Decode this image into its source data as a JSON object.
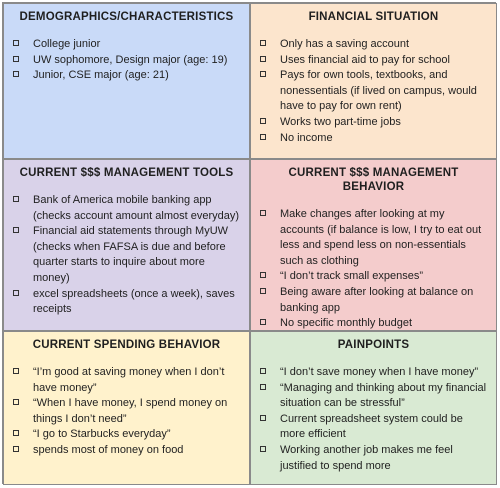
{
  "colors": {
    "demographics_bg": "#c9daf8",
    "financial_bg": "#fce5cd",
    "tools_bg": "#d9d2e9",
    "behavior_bg": "#f4cccc",
    "spending_bg": "#fff2cc",
    "painpoints_bg": "#d9ead3",
    "border": "#8a8a8a"
  },
  "icons": {
    "bullet": "checkbox-icon"
  },
  "cells": {
    "demographics": {
      "title": "DEMOGRAPHICS/CHARACTERISTICS",
      "items": [
        "College junior",
        "UW sophomore, Design major (age: 19)",
        "Junior, CSE major (age: 21)"
      ]
    },
    "financial": {
      "title": "FINANCIAL SITUATION",
      "items": [
        "Only has a saving account",
        "Uses financial aid to pay for school",
        "Pays for own tools, textbooks, and nonessentials (if lived on campus, would have to pay for own rent)",
        "Works two part-time jobs",
        "No income"
      ]
    },
    "tools": {
      "title": "CURRENT $$$ MANAGEMENT TOOLS",
      "items": [
        "Bank of America mobile banking app (checks account amount almost everyday)",
        "Financial aid statements through MyUW (checks when FAFSA is due and before quarter starts to inquire about more money)",
        "excel spreadsheets (once a week), saves receipts"
      ]
    },
    "behavior": {
      "title": "CURRENT $$$ MANAGEMENT BEHAVIOR",
      "items": [
        "Make changes after looking at my accounts (if balance is low, I try to eat out less and spend less on non-essentials such as clothing",
        "“I don’t track small expenses”",
        "Being aware after looking at balance on banking app",
        "No specific monthly budget"
      ]
    },
    "spending": {
      "title": "CURRENT SPENDING BEHAVIOR",
      "items": [
        "“I’m good at saving money when I don’t have money”",
        "“When I have money, I spend money on things I don’t need”",
        "“I go to Starbucks everyday”",
        "spends most of money on food"
      ]
    },
    "painpoints": {
      "title": "PAINPOINTS",
      "items": [
        "“I don’t save money when I have money”",
        "“Managing and thinking about my financial situation can be stressful”",
        "Current spreadsheet system could be more efficient",
        "Working another job makes me feel justified to spend more"
      ]
    }
  }
}
